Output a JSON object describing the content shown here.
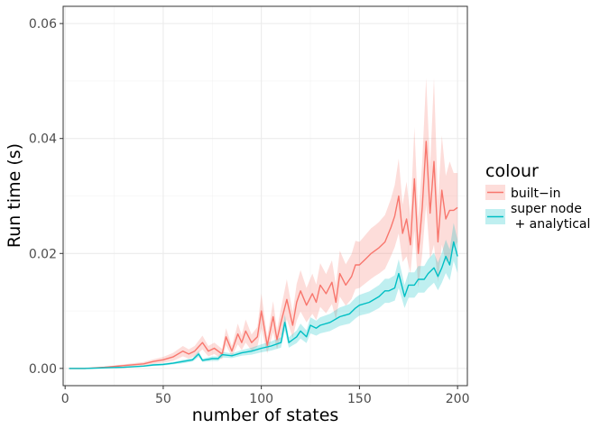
{
  "chart_data": {
    "type": "line",
    "xlabel": "number of states",
    "ylabel": "Run time (s)",
    "xlim": [
      -1,
      205
    ],
    "ylim": [
      -0.003,
      0.063
    ],
    "x_ticks": [
      0,
      50,
      100,
      150,
      200
    ],
    "y_ticks": [
      0.0,
      0.02,
      0.04,
      0.06
    ],
    "x_tick_labels": [
      "0",
      "50",
      "100",
      "150",
      "200"
    ],
    "y_tick_labels": [
      "0.00",
      "0.02",
      "0.04",
      "0.06"
    ],
    "grid": true,
    "legend": {
      "title": "colour",
      "placement": "right",
      "entries": [
        "built−in",
        "super node",
        " + analytical"
      ]
    },
    "series": [
      {
        "name": "built−in",
        "color": "#F8766D",
        "band_color": "#F8766D",
        "band_opacity": 0.25,
        "x": [
          2,
          10,
          20,
          30,
          40,
          45,
          50,
          55,
          60,
          63,
          66,
          70,
          73,
          76,
          80,
          82,
          85,
          88,
          90,
          92,
          95,
          98,
          100,
          103,
          106,
          108,
          110,
          113,
          116,
          118,
          120,
          123,
          126,
          128,
          130,
          133,
          136,
          138,
          140,
          143,
          146,
          148,
          150,
          153,
          156,
          158,
          160,
          163,
          166,
          168,
          170,
          172,
          174,
          176,
          178,
          180,
          182,
          184,
          186,
          188,
          190,
          192,
          194,
          196,
          198,
          200
        ],
        "values": [
          0.0,
          0.0,
          0.0002,
          0.0005,
          0.0008,
          0.0012,
          0.0015,
          0.002,
          0.003,
          0.0025,
          0.003,
          0.0045,
          0.003,
          0.0035,
          0.0025,
          0.0055,
          0.003,
          0.006,
          0.0045,
          0.0065,
          0.0045,
          0.0055,
          0.01,
          0.004,
          0.009,
          0.005,
          0.008,
          0.012,
          0.0075,
          0.0115,
          0.0135,
          0.011,
          0.013,
          0.0115,
          0.0145,
          0.013,
          0.015,
          0.0115,
          0.0165,
          0.0145,
          0.016,
          0.018,
          0.018,
          0.019,
          0.02,
          0.0205,
          0.021,
          0.022,
          0.0245,
          0.0265,
          0.03,
          0.0235,
          0.026,
          0.0215,
          0.033,
          0.02,
          0.028,
          0.0395,
          0.027,
          0.036,
          0.022,
          0.031,
          0.026,
          0.0275,
          0.0275,
          0.028
        ],
        "band_width": [
          0.0,
          0.0,
          0.0001,
          0.0002,
          0.0003,
          0.0004,
          0.0005,
          0.0007,
          0.0009,
          0.0008,
          0.0009,
          0.0012,
          0.0009,
          0.001,
          0.0009,
          0.0015,
          0.0009,
          0.0018,
          0.0013,
          0.002,
          0.0014,
          0.0017,
          0.003,
          0.0014,
          0.0027,
          0.0017,
          0.0024,
          0.0035,
          0.0022,
          0.0032,
          0.0036,
          0.003,
          0.0035,
          0.0031,
          0.0038,
          0.0034,
          0.0038,
          0.003,
          0.004,
          0.0036,
          0.0039,
          0.0042,
          0.004,
          0.0042,
          0.0044,
          0.0044,
          0.0045,
          0.0047,
          0.005,
          0.0054,
          0.0065,
          0.005,
          0.0065,
          0.005,
          0.009,
          0.006,
          0.008,
          0.011,
          0.008,
          0.0145,
          0.007,
          0.0095,
          0.0075,
          0.0085,
          0.0065,
          0.006
        ]
      },
      {
        "name": "super node + analytical",
        "color": "#00BFC4",
        "band_color": "#00BFC4",
        "band_opacity": 0.25,
        "x": [
          2,
          10,
          20,
          30,
          40,
          45,
          50,
          55,
          60,
          65,
          68,
          70,
          75,
          78,
          80,
          85,
          90,
          95,
          100,
          105,
          110,
          112,
          114,
          116,
          118,
          120,
          123,
          125,
          128,
          130,
          135,
          140,
          145,
          148,
          150,
          155,
          160,
          163,
          165,
          168,
          170,
          173,
          175,
          178,
          180,
          183,
          185,
          188,
          190,
          192,
          194,
          196,
          198,
          200
        ],
        "values": [
          0.0,
          0.0,
          0.0001,
          0.0002,
          0.0004,
          0.0006,
          0.0007,
          0.0009,
          0.0012,
          0.0015,
          0.0025,
          0.0014,
          0.0017,
          0.0017,
          0.0024,
          0.0022,
          0.0027,
          0.003,
          0.0035,
          0.0039,
          0.0045,
          0.008,
          0.0045,
          0.005,
          0.0055,
          0.0065,
          0.0055,
          0.0075,
          0.007,
          0.0075,
          0.008,
          0.009,
          0.0095,
          0.0105,
          0.011,
          0.0115,
          0.0125,
          0.0135,
          0.0135,
          0.014,
          0.0165,
          0.0125,
          0.0145,
          0.0145,
          0.0155,
          0.0155,
          0.0165,
          0.0175,
          0.016,
          0.0175,
          0.0195,
          0.018,
          0.022,
          0.0195
        ],
        "band_width": [
          0.0,
          0.0,
          0.0,
          0.0001,
          0.0001,
          0.0002,
          0.0002,
          0.0002,
          0.0003,
          0.0003,
          0.0005,
          0.0003,
          0.0004,
          0.0004,
          0.0005,
          0.0004,
          0.0005,
          0.0006,
          0.0007,
          0.0008,
          0.0009,
          0.0014,
          0.0009,
          0.001,
          0.0011,
          0.0013,
          0.0011,
          0.0014,
          0.0013,
          0.0014,
          0.0015,
          0.0016,
          0.0017,
          0.0018,
          0.0018,
          0.0019,
          0.002,
          0.0021,
          0.0021,
          0.0022,
          0.0025,
          0.002,
          0.0022,
          0.0022,
          0.0023,
          0.0023,
          0.0025,
          0.0026,
          0.0024,
          0.0026,
          0.0029,
          0.0027,
          0.0033,
          0.0029
        ]
      }
    ]
  }
}
